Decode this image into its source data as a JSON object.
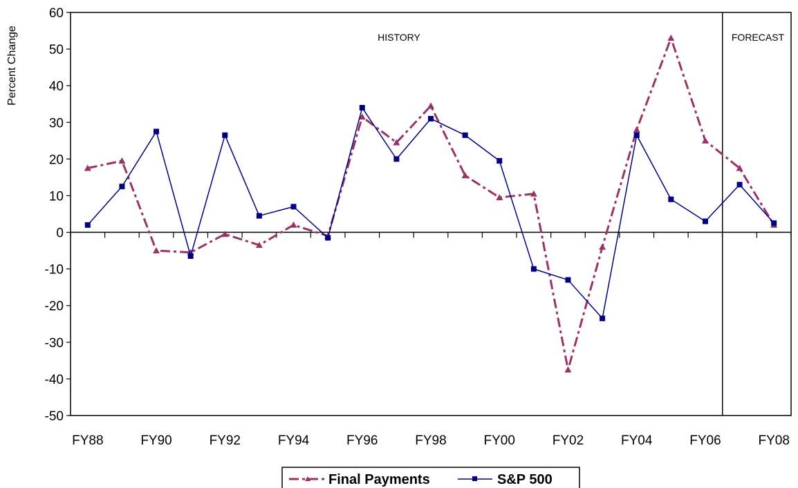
{
  "chart_data": {
    "type": "line",
    "ylabel": "Percent Change",
    "xlabel": "",
    "ylim": [
      -50,
      60
    ],
    "y_ticks": [
      "60",
      "50",
      "40",
      "30",
      "20",
      "10",
      "0",
      "-10",
      "-20",
      "-30",
      "-40",
      "-50"
    ],
    "x_labels": [
      "FY88",
      "FY90",
      "FY92",
      "FY94",
      "FY96",
      "FY98",
      "FY00",
      "FY02",
      "FY04",
      "FY06",
      "FY08"
    ],
    "categories": [
      "FY88",
      "FY89",
      "FY90",
      "FY91",
      "FY92",
      "FY93",
      "FY94",
      "FY95",
      "FY96",
      "FY97",
      "FY98",
      "FY99",
      "FY00",
      "FY01",
      "FY02",
      "FY03",
      "FY04",
      "FY05",
      "FY06",
      "FY07",
      "FY08"
    ],
    "annotations": {
      "history": "HISTORY",
      "forecast": "FORECAST"
    },
    "divider_between": [
      "FY06",
      "FY07"
    ],
    "legend_position": "bottom-center",
    "grid": false,
    "series": [
      {
        "name": "Final Payments",
        "color": "#993366",
        "marker": "triangle",
        "values": [
          17.5,
          19.5,
          -5,
          -5.5,
          -0.5,
          -3.5,
          2,
          -1,
          31.5,
          24.5,
          34.5,
          15.5,
          9.5,
          10.5,
          -37.5,
          -4,
          28,
          53,
          25,
          17.5,
          2
        ]
      },
      {
        "name": "S&P 500",
        "color": "#000080",
        "marker": "square",
        "values": [
          2,
          12.5,
          27.5,
          -6.5,
          26.5,
          4.5,
          7,
          -1.5,
          34,
          20,
          31,
          26.5,
          19.5,
          -10,
          -13,
          -23.5,
          26.5,
          9,
          3,
          13,
          2.5
        ]
      }
    ]
  }
}
